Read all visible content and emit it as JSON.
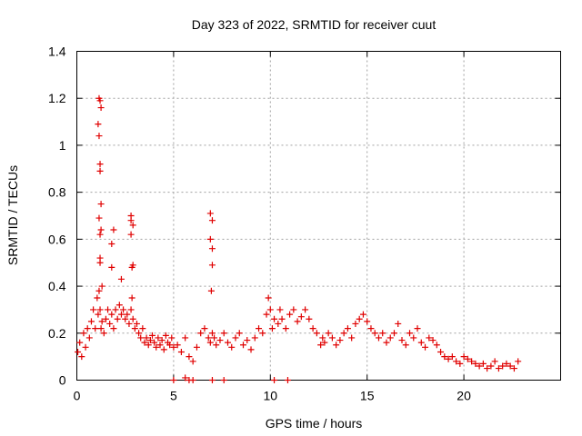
{
  "chart_data": {
    "type": "scatter",
    "title": "Day 323 of 2022, SRMTID for receiver cuut",
    "xlabel": "GPS time / hours",
    "ylabel": "SRMTID / TECUs",
    "xlim": [
      0,
      25
    ],
    "ylim": [
      0,
      1.4
    ],
    "xticks": [
      0,
      5,
      10,
      15,
      20
    ],
    "xtick_labels": [
      "0",
      "5",
      "10",
      "15",
      "20"
    ],
    "yticks": [
      0,
      0.2,
      0.4,
      0.6,
      0.8,
      1.0,
      1.2,
      1.4
    ],
    "ytick_labels": [
      "0",
      "0.2",
      "0.4",
      "0.6",
      "0.8",
      "1",
      "1.2",
      "1.4"
    ],
    "grid": true,
    "marker": "plus",
    "color": "#e00000",
    "series": [
      {
        "name": "SRMTID",
        "x": [
          0.05,
          0.15,
          0.25,
          0.35,
          0.45,
          0.55,
          0.65,
          0.75,
          0.85,
          0.95,
          1.05,
          1.1,
          1.15,
          1.2,
          1.25,
          1.3,
          1.4,
          1.5,
          1.6,
          1.7,
          1.8,
          1.9,
          2.0,
          2.1,
          2.2,
          2.3,
          2.4,
          2.5,
          2.6,
          2.7,
          2.8,
          2.85,
          2.9,
          3.0,
          3.1,
          3.2,
          3.3,
          3.4,
          3.5,
          3.6,
          3.7,
          3.8,
          3.9,
          4.0,
          4.1,
          4.2,
          4.3,
          4.4,
          4.5,
          4.6,
          4.7,
          4.8,
          4.9,
          5.0,
          5.2,
          5.4,
          5.6,
          5.8,
          6.0,
          6.2,
          6.4,
          6.6,
          6.8,
          6.9,
          7.0,
          7.1,
          7.2,
          7.4,
          7.6,
          7.8,
          8.0,
          8.2,
          8.4,
          8.6,
          8.8,
          9.0,
          9.2,
          9.4,
          9.6,
          9.8,
          9.9,
          10.0,
          10.1,
          10.2,
          10.4,
          10.5,
          10.6,
          10.8,
          11.0,
          11.2,
          11.4,
          11.6,
          11.8,
          12.0,
          12.2,
          12.4,
          12.6,
          12.7,
          12.8,
          13.0,
          13.2,
          13.4,
          13.6,
          13.8,
          14.0,
          14.2,
          14.4,
          14.6,
          14.8,
          15.0,
          15.2,
          15.4,
          15.6,
          15.8,
          16.0,
          16.2,
          16.4,
          16.6,
          16.8,
          17.0,
          17.2,
          17.4,
          17.6,
          17.8,
          18.0,
          18.2,
          18.4,
          18.6,
          18.8,
          19.0,
          19.2,
          19.4,
          19.6,
          19.8,
          20.0,
          20.2,
          20.4,
          20.6,
          20.8,
          21.0,
          21.2,
          21.4,
          21.6,
          21.8,
          22.0,
          22.2,
          22.4,
          22.6,
          22.8,
          1.15,
          1.2,
          1.25,
          1.1,
          1.15,
          1.2,
          1.2,
          1.25,
          1.15,
          1.2,
          1.25,
          1.2,
          1.2,
          1.3,
          1.8,
          1.9,
          1.8,
          2.3,
          2.8,
          2.9,
          2.8,
          2.9,
          2.85,
          2.8,
          6.9,
          7.0,
          6.9,
          7.0,
          7.0,
          6.95,
          5.0,
          5.6,
          5.8,
          6.0,
          7.0,
          7.6,
          10.2,
          10.9
        ],
        "y": [
          0.12,
          0.16,
          0.1,
          0.2,
          0.14,
          0.22,
          0.18,
          0.25,
          0.3,
          0.22,
          0.35,
          0.28,
          0.38,
          0.3,
          0.22,
          0.25,
          0.2,
          0.26,
          0.3,
          0.24,
          0.28,
          0.22,
          0.3,
          0.26,
          0.32,
          0.28,
          0.3,
          0.26,
          0.28,
          0.24,
          0.3,
          0.35,
          0.26,
          0.22,
          0.24,
          0.2,
          0.18,
          0.22,
          0.16,
          0.18,
          0.15,
          0.17,
          0.19,
          0.16,
          0.14,
          0.18,
          0.15,
          0.17,
          0.13,
          0.19,
          0.16,
          0.15,
          0.18,
          0.14,
          0.15,
          0.12,
          0.18,
          0.1,
          0.08,
          0.14,
          0.2,
          0.22,
          0.18,
          0.16,
          0.2,
          0.18,
          0.15,
          0.17,
          0.2,
          0.16,
          0.14,
          0.18,
          0.2,
          0.15,
          0.17,
          0.13,
          0.18,
          0.22,
          0.2,
          0.28,
          0.35,
          0.3,
          0.22,
          0.26,
          0.24,
          0.3,
          0.26,
          0.22,
          0.28,
          0.3,
          0.25,
          0.27,
          0.3,
          0.26,
          0.22,
          0.2,
          0.15,
          0.18,
          0.16,
          0.2,
          0.18,
          0.15,
          0.17,
          0.2,
          0.22,
          0.18,
          0.24,
          0.26,
          0.28,
          0.25,
          0.22,
          0.2,
          0.18,
          0.2,
          0.16,
          0.18,
          0.2,
          0.24,
          0.17,
          0.15,
          0.2,
          0.18,
          0.22,
          0.16,
          0.14,
          0.18,
          0.17,
          0.15,
          0.12,
          0.1,
          0.09,
          0.1,
          0.08,
          0.07,
          0.1,
          0.09,
          0.08,
          0.07,
          0.06,
          0.07,
          0.05,
          0.06,
          0.08,
          0.05,
          0.06,
          0.07,
          0.06,
          0.05,
          0.08,
          1.2,
          1.19,
          1.16,
          1.09,
          1.04,
          0.92,
          0.89,
          0.75,
          0.69,
          0.62,
          0.64,
          0.52,
          0.5,
          0.4,
          0.58,
          0.64,
          0.48,
          0.43,
          0.7,
          0.66,
          0.62,
          0.49,
          0.48,
          0.68,
          0.71,
          0.68,
          0.6,
          0.56,
          0.49,
          0.38,
          0.0,
          0.01,
          0.0,
          0.0,
          0.0,
          0.0,
          0.0,
          0.0
        ]
      }
    ]
  }
}
